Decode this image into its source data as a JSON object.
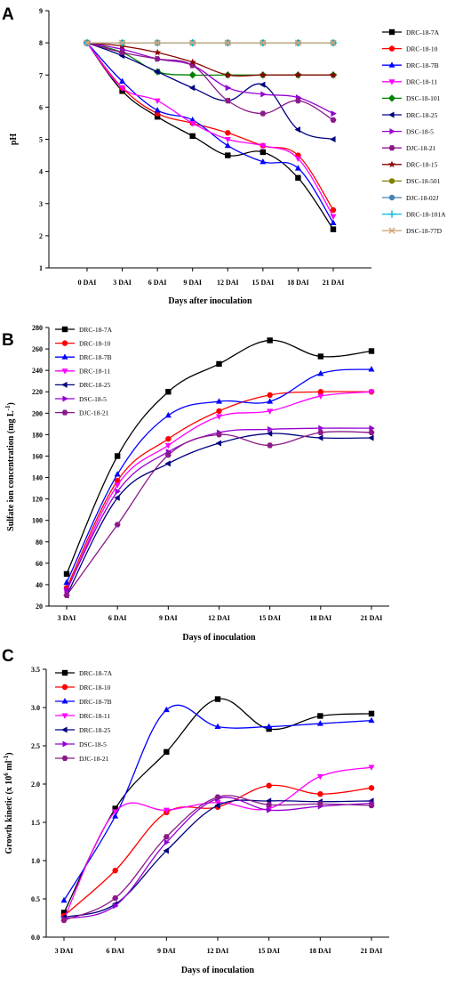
{
  "chart_data": [
    {
      "panel": "A",
      "type": "line",
      "categories": [
        "0 DAI",
        "3 DAI",
        "6 DAI",
        "9 DAI",
        "12 DAI",
        "15 DAI",
        "18 DAI",
        "21 DAI"
      ],
      "xlabel": "Days after inoculation",
      "ylabel": "pH",
      "ylim": [
        1,
        9
      ],
      "yticks": [
        1,
        2,
        3,
        4,
        5,
        6,
        7,
        8,
        9
      ],
      "legend_position": "right",
      "series": [
        {
          "name": "DRC-18-7A",
          "color": "#000000",
          "marker": "square",
          "values": [
            8.0,
            6.5,
            5.7,
            5.1,
            4.5,
            4.6,
            3.8,
            2.2
          ]
        },
        {
          "name": "DRC-18-10",
          "color": "#ff0000",
          "marker": "circle",
          "values": [
            8.0,
            6.6,
            5.8,
            5.5,
            5.2,
            4.8,
            4.5,
            2.8
          ]
        },
        {
          "name": "DRC-18-7B",
          "color": "#0000ff",
          "marker": "triangle-up",
          "values": [
            8.0,
            6.8,
            5.9,
            5.6,
            4.8,
            4.3,
            4.1,
            2.4
          ]
        },
        {
          "name": "DRC-18-11",
          "color": "#ff00ff",
          "marker": "triangle-down",
          "values": [
            8.0,
            6.6,
            6.2,
            5.5,
            5.0,
            4.8,
            4.4,
            2.6
          ]
        },
        {
          "name": "DSC-18-101",
          "color": "#008000",
          "marker": "diamond",
          "values": [
            8.0,
            7.7,
            7.1,
            7.0,
            7.0,
            7.0,
            7.0,
            7.0
          ]
        },
        {
          "name": "DRC-18-25",
          "color": "#000080",
          "marker": "triangle-left",
          "values": [
            8.0,
            7.6,
            7.1,
            6.6,
            6.2,
            6.7,
            5.3,
            5.0
          ]
        },
        {
          "name": "DSC-18-5",
          "color": "#9400d3",
          "marker": "triangle-right",
          "values": [
            8.0,
            7.8,
            7.5,
            7.3,
            6.6,
            6.4,
            6.3,
            5.8
          ]
        },
        {
          "name": "DJC-18-21",
          "color": "#8b1a89",
          "marker": "hexagon",
          "values": [
            8.0,
            7.7,
            7.5,
            7.3,
            6.2,
            5.8,
            6.2,
            5.6
          ]
        },
        {
          "name": "DRC-18-15",
          "color": "#8b0000",
          "marker": "star",
          "values": [
            8.0,
            7.9,
            7.7,
            7.4,
            7.0,
            7.0,
            7.0,
            7.0
          ]
        },
        {
          "name": "DSC-18-501",
          "color": "#808000",
          "marker": "circle",
          "values": [
            8.0,
            8.0,
            8.0,
            8.0,
            8.0,
            8.0,
            8.0,
            8.0
          ]
        },
        {
          "name": "DJC-18-02J",
          "color": "#4682b4",
          "marker": "circle",
          "values": [
            8.0,
            8.0,
            8.0,
            8.0,
            8.0,
            8.0,
            8.0,
            8.0
          ]
        },
        {
          "name": "DRC-18-101A",
          "color": "#00bcd4",
          "marker": "plus",
          "values": [
            8.0,
            8.0,
            8.0,
            8.0,
            8.0,
            8.0,
            8.0,
            8.0
          ]
        },
        {
          "name": "DSC-18-77D",
          "color": "#d2a679",
          "marker": "cross",
          "values": [
            8.0,
            8.0,
            8.0,
            8.0,
            8.0,
            8.0,
            8.0,
            8.0
          ]
        }
      ]
    },
    {
      "panel": "B",
      "type": "line",
      "categories": [
        "3 DAI",
        "6 DAI",
        "9 DAI",
        "12 DAI",
        "15 DAI",
        "18 DAI",
        "21 DAI"
      ],
      "xlabel": "Days of inoculation",
      "ylabel": "Sulfate ion concentration (mg L",
      "ylabel_sup": "-1",
      "ylabel_end": ")",
      "ylim": [
        20,
        280
      ],
      "yticks": [
        20,
        40,
        60,
        80,
        100,
        120,
        140,
        160,
        180,
        200,
        220,
        240,
        260,
        280
      ],
      "legend_position": "top-left",
      "series": [
        {
          "name": "DRC-18-7A",
          "color": "#000000",
          "marker": "square",
          "values": [
            50,
            160,
            220,
            246,
            268,
            253,
            258
          ]
        },
        {
          "name": "DRC-18-10",
          "color": "#ff0000",
          "marker": "circle",
          "values": [
            37,
            137,
            176,
            202,
            217,
            220,
            220
          ]
        },
        {
          "name": "DRC-18-7B",
          "color": "#0000ff",
          "marker": "triangle-up",
          "values": [
            42,
            143,
            198,
            211,
            211,
            237,
            241
          ]
        },
        {
          "name": "DRC-18-11",
          "color": "#ff00ff",
          "marker": "triangle-down",
          "values": [
            34,
            133,
            170,
            197,
            202,
            216,
            220
          ]
        },
        {
          "name": "DRC-18-25",
          "color": "#000080",
          "marker": "triangle-left",
          "values": [
            30,
            121,
            153,
            172,
            181,
            177,
            177
          ]
        },
        {
          "name": "DSC-18-5",
          "color": "#9400d3",
          "marker": "triangle-right",
          "values": [
            35,
            127,
            164,
            182,
            185,
            186,
            186
          ]
        },
        {
          "name": "DJC-18-21",
          "color": "#8b1a89",
          "marker": "hexagon",
          "values": [
            30,
            96,
            161,
            180,
            170,
            182,
            182
          ]
        }
      ]
    },
    {
      "panel": "C",
      "type": "line",
      "categories": [
        "3 DAI",
        "6 DAI",
        "9 DAI",
        "12 DAI",
        "15 DAI",
        "18 DAI",
        "21 DAI"
      ],
      "xlabel": "Days of inoculation",
      "ylabel": "Growth kinetic (x 10",
      "ylabel_sup": "6",
      "ylabel_mid": " ml",
      "ylabel_sup2": "-1",
      "ylabel_end": ")",
      "ylim": [
        0.0,
        3.5
      ],
      "yticks": [
        "0.0",
        "0.5",
        "1.0",
        "1.5",
        "2.0",
        "2.5",
        "3.0",
        "3.5"
      ],
      "legend_position": "top-left",
      "series": [
        {
          "name": "DRC-18-7A",
          "color": "#000000",
          "marker": "square",
          "values": [
            0.32,
            1.68,
            2.42,
            3.11,
            2.72,
            2.89,
            2.92
          ]
        },
        {
          "name": "DRC-18-10",
          "color": "#ff0000",
          "marker": "circle",
          "values": [
            0.28,
            0.87,
            1.63,
            1.7,
            1.98,
            1.87,
            1.95
          ]
        },
        {
          "name": "DRC-18-7B",
          "color": "#0000ff",
          "marker": "triangle-up",
          "values": [
            0.48,
            1.58,
            2.97,
            2.75,
            2.75,
            2.79,
            2.83
          ]
        },
        {
          "name": "DRC-18-11",
          "color": "#ff00ff",
          "marker": "triangle-down",
          "values": [
            0.24,
            1.64,
            1.66,
            1.76,
            1.68,
            2.1,
            2.22
          ]
        },
        {
          "name": "DRC-18-25",
          "color": "#000080",
          "marker": "triangle-left",
          "values": [
            0.26,
            0.43,
            1.13,
            1.72,
            1.78,
            1.77,
            1.78
          ]
        },
        {
          "name": "DSC-18-5",
          "color": "#9400d3",
          "marker": "triangle-right",
          "values": [
            0.24,
            0.41,
            1.24,
            1.81,
            1.66,
            1.71,
            1.75
          ]
        },
        {
          "name": "DJC-18-21",
          "color": "#8b1a89",
          "marker": "hexagon",
          "values": [
            0.22,
            0.51,
            1.31,
            1.83,
            1.73,
            1.74,
            1.72
          ]
        }
      ]
    }
  ]
}
